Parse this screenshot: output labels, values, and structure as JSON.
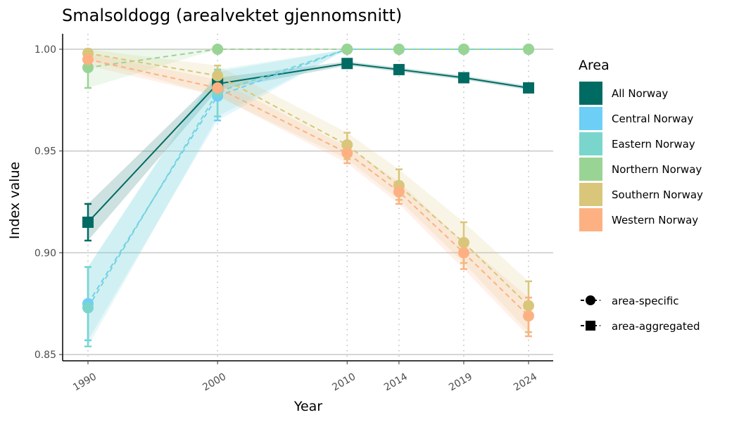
{
  "chart_data": {
    "type": "line",
    "title": "Smalsoldogg (arealvektet gjennomsnitt)",
    "xlabel": "Year",
    "ylabel": "Index value",
    "x": [
      1990,
      2000,
      2010,
      2014,
      2019,
      2024
    ],
    "xticks": [
      "1990",
      "2000",
      "2010",
      "2014",
      "2019",
      "2024"
    ],
    "ylim": [
      0.848,
      1.007
    ],
    "yticks": [
      "0.85",
      "0.90",
      "0.95",
      "1.00"
    ],
    "ytick_values": [
      0.85,
      0.9,
      0.95,
      1.0
    ],
    "legend_title": "Area",
    "legend_position": "right",
    "series": [
      {
        "name": "All Norway",
        "color": "#006b63",
        "shape": "square",
        "dashed": false,
        "values": [
          0.915,
          0.983,
          0.993,
          0.99,
          0.986,
          0.981
        ],
        "lower": [
          0.906,
          0.98,
          0.992,
          0.989,
          0.985,
          0.98
        ],
        "upper": [
          0.924,
          0.986,
          0.994,
          0.991,
          0.987,
          0.982
        ]
      },
      {
        "name": "Central Norway",
        "color": "#6dcff6",
        "shape": "circle",
        "dashed": true,
        "values": [
          0.875,
          0.977,
          1.0,
          1.0,
          1.0,
          1.0
        ],
        "lower": [
          0.857,
          0.965,
          1.0,
          1.0,
          1.0,
          1.0
        ],
        "upper": [
          0.893,
          0.989,
          1.0,
          1.0,
          1.0,
          1.0
        ]
      },
      {
        "name": "Eastern Norway",
        "color": "#7ad6cd",
        "shape": "circle",
        "dashed": true,
        "values": [
          0.873,
          0.979,
          1.0,
          1.0,
          1.0,
          1.0
        ],
        "lower": [
          0.854,
          0.967,
          1.0,
          1.0,
          1.0,
          1.0
        ],
        "upper": [
          0.893,
          0.99,
          1.0,
          1.0,
          1.0,
          1.0
        ]
      },
      {
        "name": "Northern Norway",
        "color": "#9ad494",
        "shape": "circle",
        "dashed": true,
        "values": [
          0.991,
          1.0,
          1.0,
          1.0,
          1.0,
          1.0
        ],
        "lower": [
          0.981,
          1.0,
          1.0,
          1.0,
          1.0,
          1.0
        ],
        "upper": [
          1.0,
          1.0,
          1.0,
          1.0,
          1.0,
          1.0
        ]
      },
      {
        "name": "Southern Norway",
        "color": "#d9c67a",
        "shape": "circle",
        "dashed": true,
        "values": [
          0.998,
          0.987,
          0.953,
          0.933,
          0.905,
          0.874
        ],
        "lower": [
          0.995,
          0.977,
          0.946,
          0.926,
          0.895,
          0.861
        ],
        "upper": [
          1.0,
          0.992,
          0.959,
          0.941,
          0.915,
          0.886
        ]
      },
      {
        "name": "Western Norway",
        "color": "#fdb183",
        "shape": "circle",
        "dashed": true,
        "values": [
          0.995,
          0.981,
          0.949,
          0.93,
          0.9,
          0.869
        ],
        "lower": [
          0.992,
          0.977,
          0.944,
          0.924,
          0.892,
          0.859
        ],
        "upper": [
          0.998,
          0.985,
          0.952,
          0.935,
          0.905,
          0.878
        ]
      }
    ],
    "shape_legend": [
      {
        "label": "area-specific",
        "shape": "circle"
      },
      {
        "label": "area-aggregated",
        "shape": "square"
      }
    ]
  }
}
